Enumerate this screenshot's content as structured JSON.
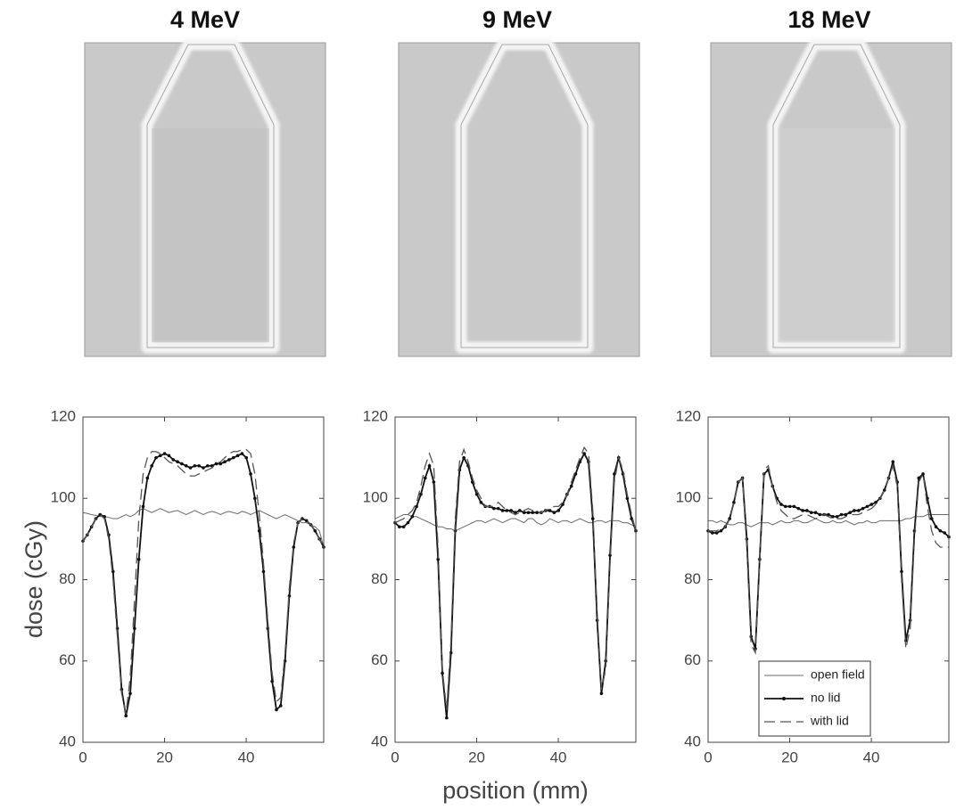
{
  "xlabel": "position (mm)",
  "ylabel": "dose (cGy)",
  "chart_data": [
    {
      "type": "line",
      "title": "4 MeV",
      "xlim": [
        0,
        59
      ],
      "ylim": [
        40,
        120
      ],
      "xticks": [
        0,
        20,
        40
      ],
      "yticks": [
        40,
        60,
        80,
        100,
        120
      ],
      "x": [
        0,
        1.05,
        2.11,
        3.16,
        4.21,
        5.27,
        6.32,
        7.38,
        8.43,
        9.48,
        10.54,
        11.59,
        12.64,
        13.7,
        14.75,
        15.8,
        16.86,
        17.91,
        18.96,
        20.02,
        21.07,
        22.13,
        23.18,
        24.23,
        25.29,
        26.34,
        27.39,
        28.45,
        29.5,
        30.55,
        31.61,
        32.66,
        33.71,
        34.77,
        35.82,
        36.88,
        37.93,
        38.98,
        40.04,
        41.09,
        42.14,
        43.2,
        44.25,
        45.3,
        46.36,
        47.41,
        48.46,
        49.52,
        50.57,
        51.63,
        52.68,
        53.73,
        54.79,
        55.84,
        56.89,
        57.95,
        59
      ],
      "series": [
        {
          "style": "solid",
          "color": "#6a6a6a",
          "values": [
            96.5,
            96.3,
            96,
            95.8,
            95.5,
            95.5,
            95.3,
            95,
            95,
            95.5,
            96,
            95.5,
            96,
            97,
            97.5,
            97,
            96.5,
            97,
            97.5,
            97,
            96.5,
            96.8,
            97,
            96.5,
            96,
            96.5,
            97,
            96.5,
            96,
            96.5,
            96.8,
            96.5,
            96,
            96.5,
            96.8,
            96.5,
            96.2,
            96.8,
            96.5,
            96,
            96.5,
            97,
            96.5,
            96,
            95.5,
            95,
            95.5,
            96,
            95.5,
            95,
            94.5,
            94,
            94,
            93.5,
            93,
            92,
            88
          ]
        },
        {
          "style": "dots",
          "color": "#111111",
          "values": [
            89.5,
            91,
            93,
            95,
            96,
            95.5,
            91,
            82,
            68,
            53,
            46.5,
            52,
            68,
            85,
            98,
            105,
            108,
            110,
            110.5,
            111,
            110.5,
            109.5,
            109,
            108.5,
            108,
            107.5,
            108,
            108,
            107.5,
            108,
            108,
            108.5,
            108.5,
            109,
            109.5,
            110,
            110.5,
            111,
            110,
            106,
            100,
            92,
            82,
            68,
            55,
            48,
            49,
            60,
            76,
            88,
            94,
            95,
            94.5,
            93.5,
            92,
            90,
            88
          ]
        },
        {
          "style": "dashed",
          "color": "#555555",
          "values": [
            89.5,
            91,
            93,
            95,
            96,
            95,
            90,
            80,
            66,
            52,
            47,
            56,
            75,
            95,
            106,
            110,
            111.5,
            111.5,
            111,
            110,
            109,
            108.5,
            108,
            107,
            106,
            105.5,
            105.5,
            106,
            106.5,
            107,
            107.5,
            108.5,
            109,
            110,
            111,
            111.5,
            111.5,
            112,
            112,
            111,
            106,
            96,
            84,
            70,
            57,
            50,
            51,
            62,
            78,
            89,
            94,
            95,
            94.5,
            93.5,
            92,
            90,
            88
          ]
        }
      ]
    },
    {
      "type": "line",
      "title": "9 MeV",
      "xlim": [
        0,
        59
      ],
      "ylim": [
        40,
        120
      ],
      "xticks": [
        0,
        20,
        40
      ],
      "yticks": [
        40,
        60,
        80,
        100,
        120
      ],
      "x": [
        0,
        1.05,
        2.11,
        3.16,
        4.21,
        5.27,
        6.32,
        7.38,
        8.43,
        9.48,
        10.54,
        11.59,
        12.64,
        13.7,
        14.75,
        15.8,
        16.86,
        17.91,
        18.96,
        20.02,
        21.07,
        22.13,
        23.18,
        24.23,
        25.29,
        26.34,
        27.39,
        28.45,
        29.5,
        30.55,
        31.61,
        32.66,
        33.71,
        34.77,
        35.82,
        36.88,
        37.93,
        38.98,
        40.04,
        41.09,
        42.14,
        43.2,
        44.25,
        45.3,
        46.36,
        47.41,
        48.46,
        49.52,
        50.57,
        51.63,
        52.68,
        53.73,
        54.79,
        55.84,
        56.89,
        57.95,
        59
      ],
      "series": [
        {
          "style": "solid",
          "color": "#6a6a6a",
          "values": [
            95,
            95.5,
            96,
            96,
            95.5,
            95.5,
            95,
            94.5,
            94,
            93.5,
            93,
            93,
            92.5,
            92.5,
            92,
            92.5,
            93,
            93.5,
            94,
            94.5,
            94.5,
            94,
            94.5,
            95,
            94.5,
            94,
            94.5,
            95,
            95,
            94.5,
            94,
            95,
            95,
            94,
            93.5,
            94,
            95,
            94.5,
            94,
            94.5,
            94.5,
            94,
            94.5,
            95,
            94.5,
            94,
            94,
            94.5,
            94.5,
            94,
            94.5,
            94.5,
            94.5,
            94,
            94,
            93.5,
            93
          ]
        },
        {
          "style": "dots",
          "color": "#111111",
          "values": [
            94,
            93,
            93,
            94,
            95.5,
            98,
            101,
            105,
            108,
            104,
            85,
            57,
            46,
            62,
            92,
            107,
            110,
            108,
            104,
            101,
            99,
            98,
            98,
            97.5,
            97.5,
            97,
            97,
            97,
            96.5,
            97,
            96.5,
            96.5,
            96.5,
            96.5,
            96.5,
            97,
            97,
            96.5,
            97,
            98.5,
            101,
            103,
            106,
            109,
            111,
            109,
            95,
            70,
            52,
            60,
            86,
            106,
            110,
            106,
            100,
            95,
            92
          ]
        },
        {
          "style": "dashed",
          "color": "#555555",
          "values": [
            94,
            94.5,
            95,
            96,
            97,
            99,
            103,
            108,
            111,
            108,
            88,
            58,
            48,
            65,
            95,
            109,
            112,
            109,
            105,
            102,
            100,
            98,
            98,
            98,
            99,
            98,
            97,
            96.5,
            96,
            96.5,
            97,
            97.5,
            97,
            96.5,
            96.5,
            97,
            97.5,
            98,
            98,
            99,
            101,
            104,
            107,
            110,
            112.5,
            111,
            97,
            72,
            53,
            58,
            84,
            104,
            110,
            107,
            101,
            96,
            92
          ]
        }
      ]
    },
    {
      "type": "line",
      "title": "18 MeV",
      "xlim": [
        0,
        59
      ],
      "ylim": [
        40,
        120
      ],
      "xticks": [
        0,
        20,
        40
      ],
      "yticks": [
        40,
        60,
        80,
        100,
        120
      ],
      "legend": "lower right",
      "x": [
        0,
        1.05,
        2.11,
        3.16,
        4.21,
        5.27,
        6.32,
        7.38,
        8.43,
        9.48,
        10.54,
        11.59,
        12.64,
        13.7,
        14.75,
        15.8,
        16.86,
        17.91,
        18.96,
        20.02,
        21.07,
        22.13,
        23.18,
        24.23,
        25.29,
        26.34,
        27.39,
        28.45,
        29.5,
        30.55,
        31.61,
        32.66,
        33.71,
        34.77,
        35.82,
        36.88,
        37.93,
        38.98,
        40.04,
        41.09,
        42.14,
        43.2,
        44.25,
        45.3,
        46.36,
        47.41,
        48.46,
        49.52,
        50.57,
        51.63,
        52.68,
        53.73,
        54.79,
        55.84,
        56.89,
        57.95,
        59
      ],
      "series": [
        {
          "name": "open field",
          "style": "solid",
          "color": "#6a6a6a",
          "values": [
            94.5,
            94.5,
            94,
            94.5,
            94,
            93.5,
            93.5,
            94,
            94,
            93.5,
            93,
            93.5,
            94,
            94,
            94,
            93.5,
            94,
            94.5,
            94,
            94,
            94.5,
            94.5,
            94,
            94,
            94.5,
            95,
            94.5,
            94,
            94,
            94.5,
            94,
            94,
            94.5,
            94,
            93.5,
            94,
            94,
            94.5,
            94,
            94,
            94.5,
            94.5,
            94.5,
            94.5,
            94.5,
            94.5,
            95,
            95,
            95.5,
            95.5,
            95.5,
            96,
            96,
            96,
            96,
            96,
            96
          ]
        },
        {
          "name": "no lid",
          "style": "dots",
          "color": "#111111",
          "values": [
            92,
            91.5,
            91.5,
            92,
            93,
            95,
            99,
            104,
            105,
            90,
            66,
            63,
            85,
            106,
            107,
            103,
            100,
            98.5,
            98,
            98,
            98,
            97.5,
            97,
            97,
            96.5,
            96.5,
            96,
            96,
            96,
            95.5,
            95.5,
            96,
            96,
            96.5,
            97,
            97,
            97.5,
            98,
            98.5,
            99,
            100,
            102,
            105,
            109,
            104,
            82,
            65,
            70,
            92,
            105,
            106,
            100,
            95,
            93,
            92,
            91.5,
            90.5
          ]
        },
        {
          "name": "with lid",
          "style": "dashed",
          "color": "#555555",
          "values": [
            92,
            92,
            92,
            92.5,
            93,
            95,
            99,
            104,
            105,
            88,
            64,
            62,
            84,
            107,
            108,
            103,
            99,
            97,
            96,
            95,
            95,
            95.5,
            96,
            96,
            95.5,
            95,
            95.5,
            96,
            95.5,
            95,
            95,
            95,
            95.5,
            96,
            96,
            96,
            96.5,
            97,
            97.5,
            98.5,
            100,
            102,
            105,
            108,
            103,
            80,
            63,
            68,
            90,
            104,
            106,
            98,
            92,
            89,
            88,
            88,
            88
          ]
        }
      ]
    }
  ]
}
